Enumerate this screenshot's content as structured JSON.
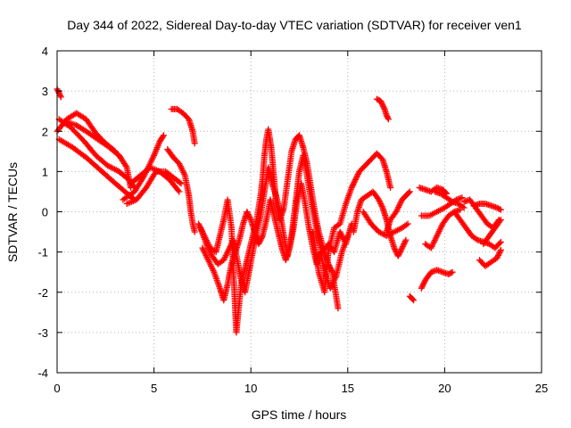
{
  "chart_data": {
    "type": "scatter",
    "title": "Day 344 of 2022, Sidereal Day-to-day VTEC variation (SDTVAR) for receiver ven1",
    "xlabel": "GPS time / hours",
    "ylabel": "SDTVAR / TECUs",
    "xlim": [
      0,
      25
    ],
    "ylim": [
      -4,
      4
    ],
    "xticks": [
      "0",
      "5",
      "10",
      "15",
      "20",
      "25"
    ],
    "yticks": [
      "4",
      "3",
      "2",
      "1",
      "0",
      "-1",
      "-2",
      "-3",
      "-4"
    ],
    "grid": true,
    "marker": "plus",
    "series_color": "#ff0000",
    "tracks": [
      {
        "name": "track-01",
        "points": [
          [
            0.0,
            2.0
          ],
          [
            0.5,
            2.3
          ],
          [
            1.0,
            2.45
          ],
          [
            1.5,
            2.3
          ],
          [
            2.0,
            1.95
          ],
          [
            2.5,
            1.7
          ],
          [
            3.0,
            1.5
          ]
        ]
      },
      {
        "name": "track-02",
        "points": [
          [
            0.1,
            2.3
          ],
          [
            0.7,
            2.1
          ],
          [
            1.4,
            1.75
          ],
          [
            2.0,
            1.4
          ],
          [
            2.6,
            1.15
          ],
          [
            3.2,
            1.0
          ],
          [
            3.7,
            0.8
          ],
          [
            4.0,
            0.6
          ]
        ]
      },
      {
        "name": "track-03",
        "points": [
          [
            0.1,
            1.8
          ],
          [
            0.8,
            1.6
          ],
          [
            1.5,
            1.35
          ],
          [
            2.2,
            1.05
          ],
          [
            2.9,
            0.75
          ],
          [
            3.5,
            0.5
          ],
          [
            4.0,
            0.3
          ]
        ]
      },
      {
        "name": "track-04",
        "points": [
          [
            0.4,
            2.25
          ],
          [
            1.0,
            2.15
          ],
          [
            1.5,
            2.0
          ],
          [
            2.1,
            1.8
          ],
          [
            2.7,
            1.6
          ],
          [
            3.2,
            1.4
          ],
          [
            3.6,
            1.1
          ],
          [
            3.8,
            0.6
          ]
        ]
      },
      {
        "name": "track-05",
        "points": [
          [
            0.0,
            3.05
          ],
          [
            0.1,
            2.95
          ],
          [
            0.2,
            2.85
          ]
        ]
      },
      {
        "name": "track-06",
        "points": [
          [
            3.4,
            0.3
          ],
          [
            4.0,
            0.5
          ],
          [
            4.5,
            0.9
          ],
          [
            5.0,
            1.4
          ],
          [
            5.3,
            1.75
          ],
          [
            5.5,
            1.9
          ]
        ]
      },
      {
        "name": "track-07",
        "points": [
          [
            3.6,
            0.2
          ],
          [
            4.1,
            0.3
          ],
          [
            4.6,
            0.6
          ],
          [
            5.1,
            1.0
          ],
          [
            5.6,
            1.0
          ],
          [
            6.0,
            0.85
          ],
          [
            6.4,
            0.7
          ]
        ]
      },
      {
        "name": "track-08",
        "points": [
          [
            3.8,
            0.7
          ],
          [
            4.3,
            0.9
          ],
          [
            4.8,
            1.1
          ],
          [
            5.3,
            1.0
          ],
          [
            5.8,
            0.8
          ],
          [
            6.3,
            0.5
          ]
        ]
      },
      {
        "name": "track-09",
        "points": [
          [
            5.7,
            1.55
          ],
          [
            6.0,
            1.35
          ],
          [
            6.3,
            1.2
          ],
          [
            6.6,
            0.9
          ],
          [
            6.8,
            0.4
          ],
          [
            6.9,
            0.0
          ],
          [
            7.0,
            -0.3
          ],
          [
            7.1,
            -0.5
          ]
        ]
      },
      {
        "name": "track-10",
        "points": [
          [
            5.9,
            2.55
          ],
          [
            6.2,
            2.55
          ],
          [
            6.5,
            2.45
          ],
          [
            6.8,
            2.3
          ],
          [
            7.0,
            2.0
          ],
          [
            7.1,
            1.7
          ]
        ]
      },
      {
        "name": "track-11",
        "points": [
          [
            7.3,
            -0.3
          ],
          [
            7.6,
            -0.6
          ],
          [
            7.9,
            -0.9
          ],
          [
            8.2,
            -1.0
          ],
          [
            8.4,
            -0.6
          ],
          [
            8.6,
            -0.2
          ],
          [
            8.8,
            0.3
          ],
          [
            9.0,
            -0.4
          ],
          [
            9.1,
            -1.5
          ],
          [
            9.2,
            -2.5
          ],
          [
            9.25,
            -3.0
          ],
          [
            9.35,
            -2.5
          ],
          [
            9.5,
            -1.8
          ],
          [
            9.7,
            -1.4
          ],
          [
            9.9,
            -1.0
          ],
          [
            10.1,
            -0.6
          ],
          [
            10.3,
            -0.2
          ],
          [
            10.5,
            0.4
          ],
          [
            10.6,
            0.8
          ],
          [
            10.7,
            1.4
          ],
          [
            10.8,
            1.8
          ],
          [
            10.9,
            2.05
          ],
          [
            11.05,
            1.6
          ],
          [
            11.2,
            0.8
          ],
          [
            11.3,
            0.2
          ],
          [
            11.5,
            -0.2
          ],
          [
            11.7,
            0.1
          ],
          [
            11.9,
            0.8
          ],
          [
            12.1,
            1.5
          ],
          [
            12.3,
            1.8
          ],
          [
            12.5,
            1.9
          ],
          [
            12.7,
            1.6
          ],
          [
            12.9,
            1.2
          ],
          [
            13.1,
            0.6
          ],
          [
            13.3,
            0.0
          ],
          [
            13.5,
            -0.5
          ],
          [
            13.8,
            -1.0
          ],
          [
            14.0,
            -1.3
          ],
          [
            14.2,
            -1.5
          ],
          [
            14.4,
            -2.1
          ],
          [
            14.5,
            -2.4
          ]
        ]
      },
      {
        "name": "track-12",
        "points": [
          [
            7.4,
            -0.4
          ],
          [
            7.7,
            -0.8
          ],
          [
            8.0,
            -1.1
          ],
          [
            8.3,
            -1.3
          ],
          [
            8.6,
            -1.2
          ],
          [
            8.9,
            -0.9
          ],
          [
            9.1,
            -0.7
          ],
          [
            9.3,
            -1.2
          ],
          [
            9.5,
            -1.7
          ],
          [
            9.7,
            -2.0
          ],
          [
            9.9,
            -1.5
          ],
          [
            10.1,
            -1.0
          ],
          [
            10.3,
            -0.5
          ],
          [
            10.5,
            -0.1
          ],
          [
            10.7,
            0.5
          ],
          [
            10.9,
            1.1
          ],
          [
            11.1,
            0.7
          ],
          [
            11.3,
            0.4
          ],
          [
            11.5,
            0.0
          ],
          [
            11.7,
            -0.6
          ],
          [
            11.9,
            -1.1
          ],
          [
            12.1,
            -0.6
          ],
          [
            12.3,
            0.2
          ],
          [
            12.5,
            1.0
          ],
          [
            12.7,
            1.4
          ],
          [
            12.9,
            0.9
          ],
          [
            13.1,
            0.3
          ],
          [
            13.3,
            -0.2
          ],
          [
            13.5,
            -0.7
          ],
          [
            13.7,
            -1.0
          ],
          [
            14.0,
            -0.8
          ],
          [
            14.3,
            -1.0
          ],
          [
            14.6,
            -0.5
          ],
          [
            14.9,
            -0.8
          ],
          [
            15.2,
            -0.3
          ]
        ]
      },
      {
        "name": "track-13",
        "points": [
          [
            7.5,
            -0.9
          ],
          [
            7.8,
            -1.2
          ],
          [
            8.1,
            -1.5
          ],
          [
            8.4,
            -1.9
          ],
          [
            8.6,
            -2.2
          ],
          [
            8.8,
            -1.8
          ],
          [
            9.0,
            -1.3
          ],
          [
            9.2,
            -1.0
          ],
          [
            9.4,
            -0.7
          ],
          [
            9.6,
            -0.3
          ],
          [
            9.8,
            0.0
          ],
          [
            10.0,
            -0.2
          ],
          [
            10.2,
            -0.5
          ],
          [
            10.4,
            -0.8
          ],
          [
            10.6,
            -0.6
          ],
          [
            10.8,
            -0.2
          ],
          [
            11.0,
            0.3
          ],
          [
            11.2,
            -0.1
          ],
          [
            11.4,
            -0.5
          ],
          [
            11.6,
            -0.9
          ],
          [
            11.8,
            -1.2
          ],
          [
            12.0,
            -0.9
          ],
          [
            12.2,
            -0.4
          ],
          [
            12.4,
            0.3
          ],
          [
            12.6,
            0.7
          ],
          [
            12.8,
            0.2
          ],
          [
            13.0,
            -0.4
          ],
          [
            13.2,
            -0.9
          ],
          [
            13.4,
            -1.3
          ],
          [
            13.6,
            -1.0
          ],
          [
            13.8,
            -1.5
          ],
          [
            14.1,
            -1.9
          ],
          [
            14.4,
            -1.6
          ],
          [
            14.7,
            -1.0
          ],
          [
            15.0,
            -0.6
          ]
        ]
      },
      {
        "name": "track-14",
        "points": [
          [
            13.2,
            -0.5
          ],
          [
            13.5,
            -1.5
          ],
          [
            13.8,
            -2.0
          ],
          [
            14.0,
            -1.0
          ],
          [
            14.3,
            -0.4
          ],
          [
            14.6,
            -0.3
          ],
          [
            14.9,
            0.2
          ],
          [
            15.2,
            0.6
          ],
          [
            15.4,
            0.8
          ],
          [
            15.6,
            1.0
          ],
          [
            15.9,
            1.15
          ],
          [
            16.2,
            1.3
          ],
          [
            16.5,
            1.45
          ],
          [
            16.8,
            1.3
          ],
          [
            17.0,
            1.0
          ],
          [
            17.2,
            0.6
          ]
        ]
      },
      {
        "name": "track-15",
        "points": [
          [
            15.3,
            -0.5
          ],
          [
            15.5,
            0.0
          ],
          [
            15.7,
            0.3
          ],
          [
            16.0,
            0.4
          ],
          [
            16.3,
            0.5
          ],
          [
            16.6,
            0.3
          ],
          [
            16.8,
            0.1
          ],
          [
            17.0,
            -0.2
          ],
          [
            17.2,
            -0.6
          ],
          [
            17.4,
            -0.9
          ],
          [
            17.6,
            -1.1
          ],
          [
            17.8,
            -0.9
          ],
          [
            18.0,
            -0.7
          ]
        ]
      },
      {
        "name": "track-16",
        "points": [
          [
            15.8,
            0.0
          ],
          [
            16.2,
            -0.3
          ],
          [
            16.6,
            -0.5
          ],
          [
            17.0,
            -0.6
          ],
          [
            17.4,
            -0.5
          ],
          [
            17.8,
            -0.4
          ],
          [
            18.1,
            -0.3
          ]
        ]
      },
      {
        "name": "track-17",
        "points": [
          [
            16.5,
            2.8
          ],
          [
            16.7,
            2.75
          ],
          [
            16.9,
            2.55
          ],
          [
            17.0,
            2.4
          ],
          [
            17.1,
            2.3
          ]
        ]
      },
      {
        "name": "track-18",
        "points": [
          [
            17.0,
            -0.5
          ],
          [
            17.2,
            -0.2
          ],
          [
            17.5,
            0.0
          ],
          [
            17.8,
            0.3
          ],
          [
            18.0,
            0.4
          ],
          [
            18.2,
            0.5
          ]
        ]
      },
      {
        "name": "track-19",
        "points": [
          [
            18.2,
            -2.1
          ],
          [
            18.4,
            -2.2
          ]
        ]
      },
      {
        "name": "track-20",
        "points": [
          [
            18.7,
            0.6
          ],
          [
            19.0,
            0.55
          ],
          [
            19.3,
            0.5
          ],
          [
            19.6,
            0.6
          ],
          [
            19.9,
            0.55
          ],
          [
            20.1,
            0.45
          ]
        ]
      },
      {
        "name": "track-21",
        "points": [
          [
            18.8,
            -1.9
          ],
          [
            19.0,
            -1.7
          ],
          [
            19.3,
            -1.5
          ],
          [
            19.6,
            -1.45
          ],
          [
            19.9,
            -1.5
          ],
          [
            20.2,
            -1.55
          ],
          [
            20.4,
            -1.5
          ]
        ]
      },
      {
        "name": "track-22",
        "points": [
          [
            18.8,
            -0.1
          ],
          [
            19.2,
            -0.1
          ],
          [
            19.6,
            0.0
          ],
          [
            20.0,
            0.1
          ],
          [
            20.3,
            0.2
          ],
          [
            20.6,
            0.3
          ],
          [
            20.9,
            0.35
          ]
        ]
      },
      {
        "name": "track-23",
        "points": [
          [
            19.0,
            -0.8
          ],
          [
            19.3,
            -0.9
          ],
          [
            19.6,
            -0.6
          ],
          [
            19.9,
            -0.3
          ],
          [
            20.2,
            -0.1
          ],
          [
            20.5,
            0.0
          ],
          [
            20.8,
            0.05
          ]
        ]
      },
      {
        "name": "track-24",
        "points": [
          [
            19.5,
            0.5
          ],
          [
            19.8,
            0.45
          ],
          [
            20.1,
            0.35
          ],
          [
            20.4,
            0.25
          ],
          [
            20.7,
            0.2
          ],
          [
            21.0,
            0.1
          ]
        ]
      },
      {
        "name": "track-25",
        "points": [
          [
            20.5,
            0.0
          ],
          [
            20.8,
            -0.2
          ],
          [
            21.1,
            -0.4
          ],
          [
            21.4,
            -0.6
          ],
          [
            21.7,
            -0.7
          ],
          [
            22.0,
            -0.75
          ],
          [
            22.3,
            -0.8
          ],
          [
            22.6,
            -0.9
          ],
          [
            22.9,
            -0.75
          ]
        ]
      },
      {
        "name": "track-26",
        "points": [
          [
            21.5,
            0.15
          ],
          [
            21.8,
            0.2
          ],
          [
            22.1,
            0.2
          ],
          [
            22.4,
            0.15
          ],
          [
            22.7,
            0.1
          ],
          [
            22.9,
            0.05
          ]
        ]
      },
      {
        "name": "track-27",
        "points": [
          [
            21.0,
            0.25
          ],
          [
            21.3,
            0.3
          ],
          [
            21.6,
            0.1
          ],
          [
            21.9,
            -0.1
          ],
          [
            22.2,
            -0.3
          ],
          [
            22.5,
            -0.4
          ],
          [
            22.8,
            -0.2
          ]
        ]
      },
      {
        "name": "track-28",
        "points": [
          [
            21.8,
            -1.2
          ],
          [
            22.1,
            -1.35
          ],
          [
            22.4,
            -1.25
          ],
          [
            22.7,
            -1.15
          ],
          [
            22.9,
            -0.95
          ]
        ]
      },
      {
        "name": "track-29",
        "points": [
          [
            22.0,
            -0.8
          ],
          [
            22.3,
            -0.6
          ],
          [
            22.6,
            -0.4
          ],
          [
            22.9,
            -0.2
          ]
        ]
      }
    ]
  }
}
